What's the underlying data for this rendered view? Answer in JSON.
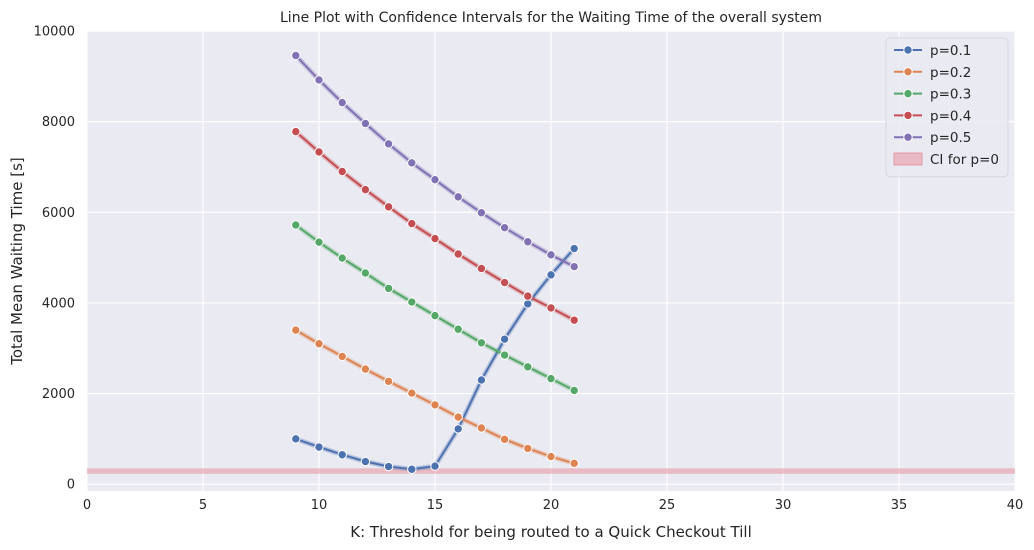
{
  "chart_data": {
    "type": "line",
    "title": "Line Plot with Confidence Intervals for the Waiting Time of the overall system",
    "xlabel": "K: Threshold for being routed to a Quick Checkout Till",
    "ylabel": "Total Mean Waiting Time [s]",
    "xlim": [
      0,
      40
    ],
    "ylim": [
      -150,
      10000
    ],
    "xticks": [
      0,
      5,
      10,
      15,
      20,
      25,
      30,
      35,
      40
    ],
    "yticks": [
      0,
      2000,
      4000,
      6000,
      8000,
      10000
    ],
    "grid": true,
    "legend_position": "top-right",
    "x": [
      9,
      10,
      11,
      12,
      13,
      14,
      15,
      16,
      17,
      18,
      19,
      20,
      21
    ],
    "series": [
      {
        "name": "p=0.1",
        "color": "#4c72b0",
        "values": [
          1000,
          820,
          650,
          500,
          390,
          330,
          400,
          1220,
          2300,
          3200,
          3980,
          4620,
          5200
        ]
      },
      {
        "name": "p=0.2",
        "color": "#dd8452",
        "values": [
          3400,
          3100,
          2820,
          2540,
          2270,
          2010,
          1750,
          1480,
          1240,
          990,
          790,
          610,
          460
        ]
      },
      {
        "name": "p=0.3",
        "color": "#55a868",
        "values": [
          5720,
          5340,
          4990,
          4660,
          4320,
          4020,
          3720,
          3420,
          3120,
          2850,
          2590,
          2330,
          2070
        ]
      },
      {
        "name": "p=0.4",
        "color": "#c44e52",
        "values": [
          7780,
          7330,
          6900,
          6500,
          6120,
          5750,
          5420,
          5080,
          4760,
          4450,
          4150,
          3890,
          3620
        ]
      },
      {
        "name": "p=0.5",
        "color": "#8172b3",
        "values": [
          9460,
          8920,
          8420,
          7960,
          7510,
          7090,
          6720,
          6340,
          5990,
          5660,
          5350,
          5060,
          4800
        ]
      }
    ],
    "ci_band": {
      "name": "CI for p=0",
      "color": "#e8a0aa",
      "y_low": 230,
      "y_high": 350
    }
  }
}
